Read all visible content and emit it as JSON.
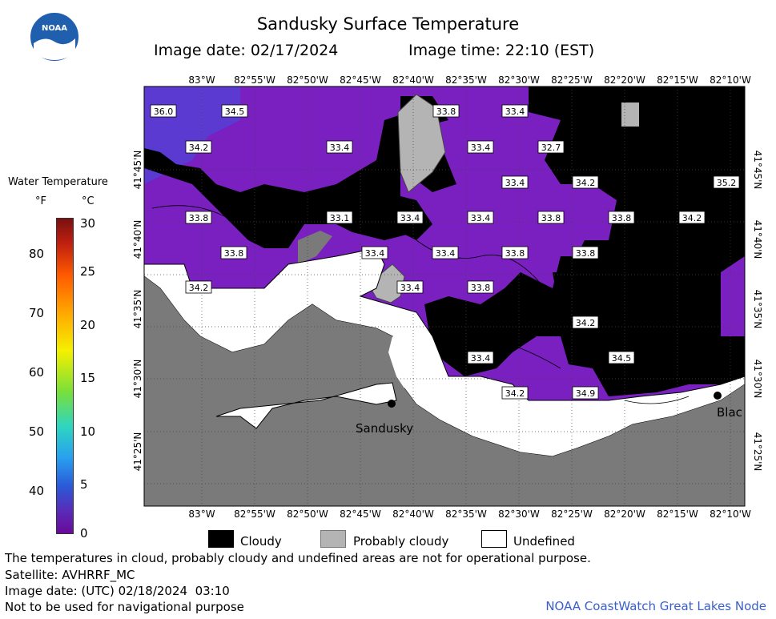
{
  "header": {
    "logo_text": "NOAA",
    "title": "Sandusky Surface Temperature",
    "image_date_local": "Image date: 02/17/2024",
    "image_time_local": "Image time: 22:10 (EST)"
  },
  "colorbar": {
    "title": "Water Temperature",
    "unit_f": "°F",
    "unit_c": "°C",
    "f_ticks": [
      "80",
      "70",
      "60",
      "50",
      "40"
    ],
    "c_ticks": [
      "30",
      "25",
      "20",
      "15",
      "10",
      "5",
      "0"
    ]
  },
  "axes": {
    "lon_labels": [
      "83°W",
      "82°55'W",
      "82°50'W",
      "82°45'W",
      "82°40'W",
      "82°35'W",
      "82°30'W",
      "82°25'W",
      "82°20'W",
      "82°15'W",
      "82°10'W"
    ],
    "lat_labels_left": [
      "41°45'N",
      "41°40'N",
      "41°35'N",
      "41°30'N",
      "41°25'N"
    ],
    "lat_labels_right": [
      "41°45'N",
      "41°40'N",
      "41°35'N",
      "41°30'N",
      "41°25'N"
    ]
  },
  "places": {
    "sandusky": "Sandusky",
    "blac": "Blac"
  },
  "temperature_labels": [
    {
      "text": "36.0"
    },
    {
      "text": "34.5"
    },
    {
      "text": "33.8"
    },
    {
      "text": "33.4"
    },
    {
      "text": "34.2"
    },
    {
      "text": "33.4"
    },
    {
      "text": "33.4"
    },
    {
      "text": "32.7"
    },
    {
      "text": "33.4"
    },
    {
      "text": "34.2"
    },
    {
      "text": "35.2"
    },
    {
      "text": "33.8"
    },
    {
      "text": "33.1"
    },
    {
      "text": "33.4"
    },
    {
      "text": "33.4"
    },
    {
      "text": "33.8"
    },
    {
      "text": "33.8"
    },
    {
      "text": "34.2"
    },
    {
      "text": "33.8"
    },
    {
      "text": "33.4"
    },
    {
      "text": "33.4"
    },
    {
      "text": "33.8"
    },
    {
      "text": "33.8"
    },
    {
      "text": "34.2"
    },
    {
      "text": "33.4"
    },
    {
      "text": "33.8"
    },
    {
      "text": "34.2"
    },
    {
      "text": "33.4"
    },
    {
      "text": "34.5"
    },
    {
      "text": "34.2"
    },
    {
      "text": "34.9"
    }
  ],
  "legend": {
    "cloudy": "Cloudy",
    "probably_cloudy": "Probably cloudy",
    "undefined": "Undefined"
  },
  "footer": {
    "note": "The temperatures in cloud, probably cloudy and undefined areas are not for operational purpose.",
    "satellite": "Satellite: AVHRRF_MC",
    "utc_date": "Image date: (UTC) 02/18/2024  03:10",
    "nav": "Not to be used for navigational purpose",
    "credit": "NOAA CoastWatch Great Lakes Node"
  },
  "colors": {
    "cloud": "#000000",
    "probably_cloudy": "#b4b4b4",
    "land": "#7a7a7a",
    "undefined": "#ffffff",
    "water_purple": "#7a1fc0",
    "water_blue_purple": "#5a3ad0",
    "credit": "#3a5fc8"
  }
}
